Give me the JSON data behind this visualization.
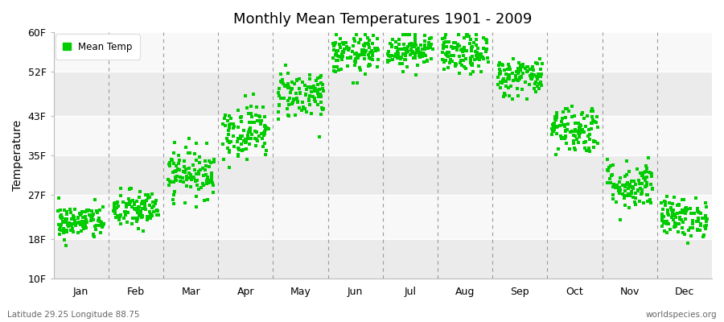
{
  "title": "Monthly Mean Temperatures 1901 - 2009",
  "ylabel": "Temperature",
  "ytick_labels": [
    "10F",
    "18F",
    "27F",
    "35F",
    "43F",
    "52F",
    "60F"
  ],
  "ytick_values": [
    10,
    18,
    27,
    35,
    43,
    52,
    60
  ],
  "ymin": 10,
  "ymax": 60,
  "months": [
    "Jan",
    "Feb",
    "Mar",
    "Apr",
    "May",
    "Jun",
    "Jul",
    "Aug",
    "Sep",
    "Oct",
    "Nov",
    "Dec"
  ],
  "dot_color": "#00cc00",
  "background_color": "#f5f5f5",
  "band_colors": [
    "#ebebeb",
    "#f8f8f8"
  ],
  "legend_label": "Mean Temp",
  "footer_left": "Latitude 29.25 Longitude 88.75",
  "footer_right": "worldspecies.org",
  "n_years": 109,
  "monthly_means": [
    21.5,
    24.0,
    31.5,
    40.0,
    47.5,
    55.5,
    56.5,
    55.5,
    51.0,
    40.5,
    29.0,
    22.5
  ],
  "monthly_stds": [
    1.8,
    2.0,
    2.5,
    2.8,
    2.5,
    2.0,
    1.8,
    2.0,
    2.0,
    2.5,
    2.5,
    2.0
  ],
  "figsize": [
    9.0,
    4.0
  ],
  "dpi": 100
}
